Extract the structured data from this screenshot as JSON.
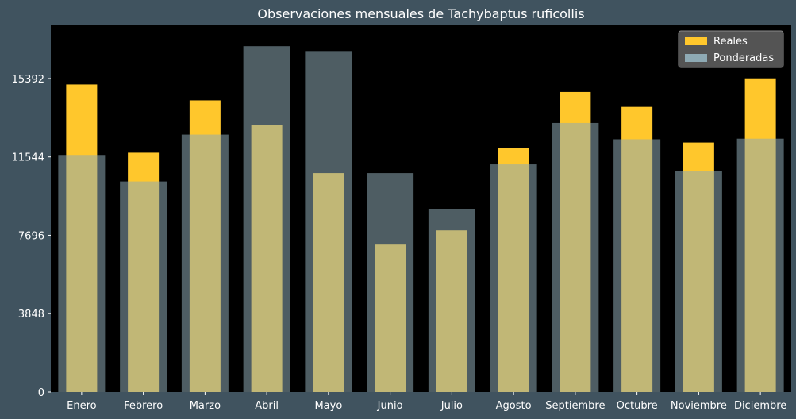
{
  "chart_data": {
    "type": "bar",
    "title": "Observaciones mensuales de Tachybaptus ruficollis",
    "xlabel": "",
    "ylabel": "",
    "categories": [
      "Enero",
      "Febrero",
      "Marzo",
      "Abril",
      "Mayo",
      "Junio",
      "Julio",
      "Agosto",
      "Septiembre",
      "Octubre",
      "Noviembre",
      "Diciembre"
    ],
    "series": [
      {
        "name": "Reales",
        "color": "#ffc72c",
        "values": [
          15100,
          11750,
          14320,
          13100,
          10750,
          7240,
          7940,
          11980,
          14730,
          14000,
          12250,
          15400
        ]
      },
      {
        "name": "Ponderadas",
        "color": "#8eaab4",
        "values": [
          11640,
          10340,
          12640,
          16980,
          16740,
          10750,
          8980,
          11180,
          13210,
          12410,
          10850,
          12440
        ]
      }
    ],
    "ylim": [
      0,
      18000
    ],
    "yticks": [
      0,
      3848,
      7696,
      11544,
      15392
    ],
    "legend": "top-right",
    "grid": false,
    "colors": {
      "page_background": "#40535f",
      "plot_background": "#000000",
      "text": "#ffffff",
      "legend_background": "#545454"
    }
  }
}
